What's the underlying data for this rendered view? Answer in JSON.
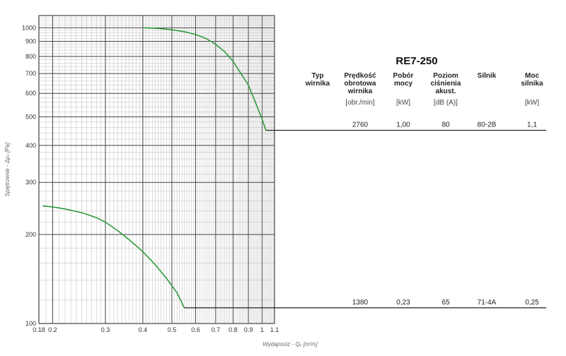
{
  "chart_data": {
    "type": "line",
    "title": "RE7-250",
    "xlabel": "Wydajność - Qᵥ [m³/s]",
    "ylabel": "Spiętrzenie - Δpₛ [Pa]",
    "x_scale": "log",
    "y_scale": "log",
    "xlim": [
      0.18,
      1.1
    ],
    "ylim": [
      100,
      1100
    ],
    "x_ticks": [
      0.18,
      0.2,
      0.3,
      0.4,
      0.5,
      0.6,
      0.7,
      0.8,
      0.9,
      1,
      1.1
    ],
    "x_tick_labels": [
      "0.18",
      "0.2",
      "0.3",
      "0.4",
      "0.5",
      "0.6",
      "0.7",
      "0.8",
      "0.9",
      "1",
      "1.1"
    ],
    "y_ticks": [
      100,
      200,
      300,
      400,
      500,
      600,
      700,
      800,
      900,
      1000
    ],
    "y_tick_labels": [
      "100",
      "200",
      "300",
      "400",
      "500",
      "600",
      "700",
      "800",
      "900",
      "1000"
    ],
    "grid": true,
    "series": [
      {
        "color": "#2e9a3c",
        "x": [
          0.4,
          0.45,
          0.5,
          0.55,
          0.6,
          0.65,
          0.7,
          0.75,
          0.8,
          0.85,
          0.9,
          0.95,
          1.0,
          1.03
        ],
        "y": [
          1000,
          995,
          985,
          970,
          950,
          920,
          880,
          830,
          770,
          700,
          640,
          560,
          490,
          450
        ]
      },
      {
        "color": "#2e9a3c",
        "x": [
          0.185,
          0.2,
          0.22,
          0.25,
          0.28,
          0.3,
          0.33,
          0.36,
          0.4,
          0.44,
          0.48,
          0.52,
          0.55
        ],
        "y": [
          250,
          248,
          244,
          237,
          228,
          220,
          206,
          192,
          175,
          158,
          142,
          127,
          113
        ]
      }
    ]
  },
  "table": {
    "title": "RE7-250",
    "headers": [
      {
        "lines": [
          "Typ",
          "wirnika"
        ],
        "unit": ""
      },
      {
        "lines": [
          "Prędkość",
          "obrotowa",
          "wirnika"
        ],
        "unit": "[obr./min]"
      },
      {
        "lines": [
          "Pobór",
          "mocy"
        ],
        "unit": "[kW]"
      },
      {
        "lines": [
          "Poziom",
          "ciśnienia",
          "akust."
        ],
        "unit": "[dB (A)]"
      },
      {
        "lines": [
          "Silnik"
        ],
        "unit": ""
      },
      {
        "lines": [
          "Moc",
          "silnika"
        ],
        "unit": "[kW]"
      }
    ],
    "rows": [
      {
        "pressure": 450,
        "cells": [
          "",
          "2760",
          "1,00",
          "80",
          "80-2B",
          "1,1"
        ]
      },
      {
        "pressure": 113,
        "cells": [
          "",
          "1380",
          "0,23",
          "65",
          "71-4A",
          "0,25"
        ]
      }
    ]
  },
  "colors": {
    "curve": "#2e9a3c",
    "grid_major": "#444444",
    "grid_minor": "#bbbbbb"
  }
}
